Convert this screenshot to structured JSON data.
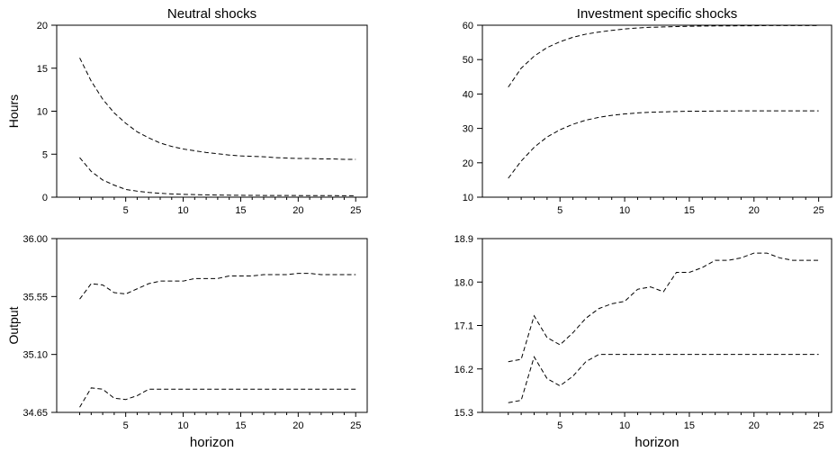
{
  "chart_data": [
    {
      "type": "line",
      "title": "Neutral shocks",
      "xlabel": "",
      "ylabel": "Hours",
      "xlim": [
        -1,
        26
      ],
      "ylim": [
        0,
        20
      ],
      "xticks": [
        5,
        10,
        15,
        20,
        25
      ],
      "yticks": [
        "0",
        "5",
        "10",
        "15",
        "20"
      ],
      "x": [
        1,
        2,
        3,
        4,
        5,
        6,
        7,
        8,
        9,
        10,
        11,
        12,
        13,
        14,
        15,
        16,
        17,
        18,
        19,
        20,
        21,
        22,
        23,
        24,
        25
      ],
      "series": [
        {
          "values": [
            16.2,
            13.5,
            11.4,
            9.8,
            8.6,
            7.6,
            6.9,
            6.3,
            5.9,
            5.6,
            5.4,
            5.2,
            5.05,
            4.9,
            4.8,
            4.75,
            4.7,
            4.6,
            4.55,
            4.5,
            4.5,
            4.45,
            4.45,
            4.4,
            4.4
          ]
        },
        {
          "values": [
            4.6,
            3.0,
            2.0,
            1.4,
            0.9,
            0.7,
            0.55,
            0.45,
            0.38,
            0.33,
            0.3,
            0.27,
            0.25,
            0.23,
            0.22,
            0.21,
            0.2,
            0.2,
            0.19,
            0.19,
            0.18,
            0.18,
            0.18,
            0.17,
            0.17
          ]
        }
      ]
    },
    {
      "type": "line",
      "title": "Investment specific shocks",
      "xlabel": "",
      "ylabel": "",
      "xlim": [
        -1,
        26
      ],
      "ylim": [
        10,
        60
      ],
      "xticks": [
        5,
        10,
        15,
        20,
        25
      ],
      "yticks": [
        "10",
        "20",
        "30",
        "40",
        "50",
        "60"
      ],
      "x": [
        1,
        2,
        3,
        4,
        5,
        6,
        7,
        8,
        9,
        10,
        11,
        12,
        13,
        14,
        15,
        16,
        17,
        18,
        19,
        20,
        21,
        22,
        23,
        24,
        25
      ],
      "series": [
        {
          "values": [
            42,
            47.5,
            51,
            53.5,
            55.2,
            56.5,
            57.4,
            58,
            58.5,
            58.9,
            59.2,
            59.4,
            59.5,
            59.6,
            59.7,
            59.75,
            59.8,
            59.8,
            59.85,
            59.85,
            59.9,
            59.9,
            59.9,
            59.9,
            59.9
          ]
        },
        {
          "values": [
            15.5,
            20.5,
            24.5,
            27.5,
            29.6,
            31.2,
            32.4,
            33.2,
            33.8,
            34.2,
            34.5,
            34.7,
            34.8,
            34.9,
            35,
            35,
            35.05,
            35.05,
            35.1,
            35.1,
            35.1,
            35.1,
            35.1,
            35.1,
            35.1
          ]
        }
      ]
    },
    {
      "type": "line",
      "title": "",
      "xlabel": "horizon",
      "ylabel": "Output",
      "xlim": [
        -1,
        26
      ],
      "ylim": [
        34.65,
        36.0
      ],
      "xticks": [
        5,
        10,
        15,
        20,
        25
      ],
      "yticks": [
        "34.65",
        "35.10",
        "35.55",
        "36.00"
      ],
      "x": [
        1,
        2,
        3,
        4,
        5,
        6,
        7,
        8,
        9,
        10,
        11,
        12,
        13,
        14,
        15,
        16,
        17,
        18,
        19,
        20,
        21,
        22,
        23,
        24,
        25
      ],
      "series": [
        {
          "values": [
            35.53,
            35.65,
            35.64,
            35.58,
            35.57,
            35.61,
            35.65,
            35.67,
            35.67,
            35.67,
            35.69,
            35.69,
            35.69,
            35.71,
            35.71,
            35.71,
            35.72,
            35.72,
            35.72,
            35.73,
            35.73,
            35.72,
            35.72,
            35.72,
            35.72
          ]
        },
        {
          "values": [
            34.69,
            34.84,
            34.83,
            34.76,
            34.75,
            34.78,
            34.83,
            34.83,
            34.83,
            34.83,
            34.83,
            34.83,
            34.83,
            34.83,
            34.83,
            34.83,
            34.83,
            34.83,
            34.83,
            34.83,
            34.83,
            34.83,
            34.83,
            34.83,
            34.83
          ]
        }
      ]
    },
    {
      "type": "line",
      "title": "",
      "xlabel": "horizon",
      "ylabel": "",
      "xlim": [
        -1,
        26
      ],
      "ylim": [
        15.3,
        18.9
      ],
      "xticks": [
        5,
        10,
        15,
        20,
        25
      ],
      "yticks": [
        "15.3",
        "16.2",
        "17.1",
        "18.0",
        "18.9"
      ],
      "x": [
        1,
        2,
        3,
        4,
        5,
        6,
        7,
        8,
        9,
        10,
        11,
        12,
        13,
        14,
        15,
        16,
        17,
        18,
        19,
        20,
        21,
        22,
        23,
        24,
        25
      ],
      "series": [
        {
          "values": [
            16.35,
            16.4,
            17.3,
            16.85,
            16.7,
            16.95,
            17.25,
            17.45,
            17.55,
            17.6,
            17.85,
            17.9,
            17.8,
            18.2,
            18.2,
            18.3,
            18.45,
            18.45,
            18.5,
            18.6,
            18.6,
            18.5,
            18.45,
            18.45,
            18.45
          ]
        },
        {
          "values": [
            15.5,
            15.55,
            16.45,
            16.0,
            15.85,
            16.05,
            16.35,
            16.5,
            16.5,
            16.5,
            16.5,
            16.5,
            16.5,
            16.5,
            16.5,
            16.5,
            16.5,
            16.5,
            16.5,
            16.5,
            16.5,
            16.5,
            16.5,
            16.5,
            16.5
          ]
        }
      ]
    }
  ]
}
